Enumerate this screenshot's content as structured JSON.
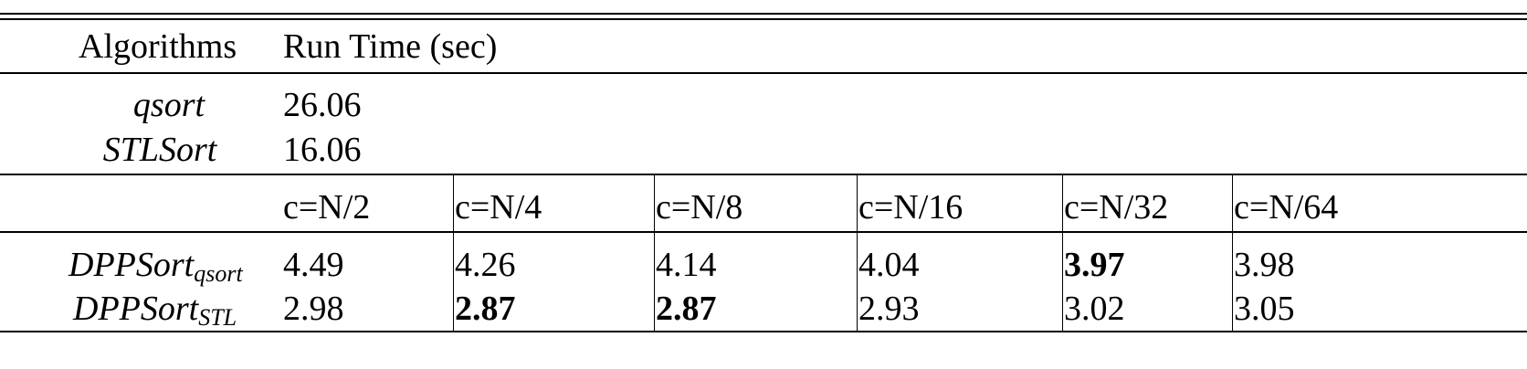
{
  "table": {
    "header": {
      "col1": "Algorithms",
      "col2": "Run Time (sec)"
    },
    "baselines": [
      {
        "name": "qsort",
        "time": "26.06"
      },
      {
        "name": "STLSort",
        "time": "16.06"
      }
    ],
    "c_headers": [
      "c=N/2",
      "c=N/4",
      "c=N/8",
      "c=N/16",
      "c=N/32",
      "c=N/64"
    ],
    "dpp_rows": [
      {
        "base": "DPPSort",
        "sub": "qsort",
        "values": [
          "4.49",
          "4.26",
          "4.14",
          "4.04",
          "3.97",
          "3.98"
        ],
        "bold_index": 4
      },
      {
        "base": "DPPSort",
        "sub": "STL",
        "values": [
          "2.98",
          "2.87",
          "2.87",
          "2.93",
          "3.02",
          "3.05"
        ],
        "bold_index": [
          1,
          2
        ]
      }
    ]
  }
}
